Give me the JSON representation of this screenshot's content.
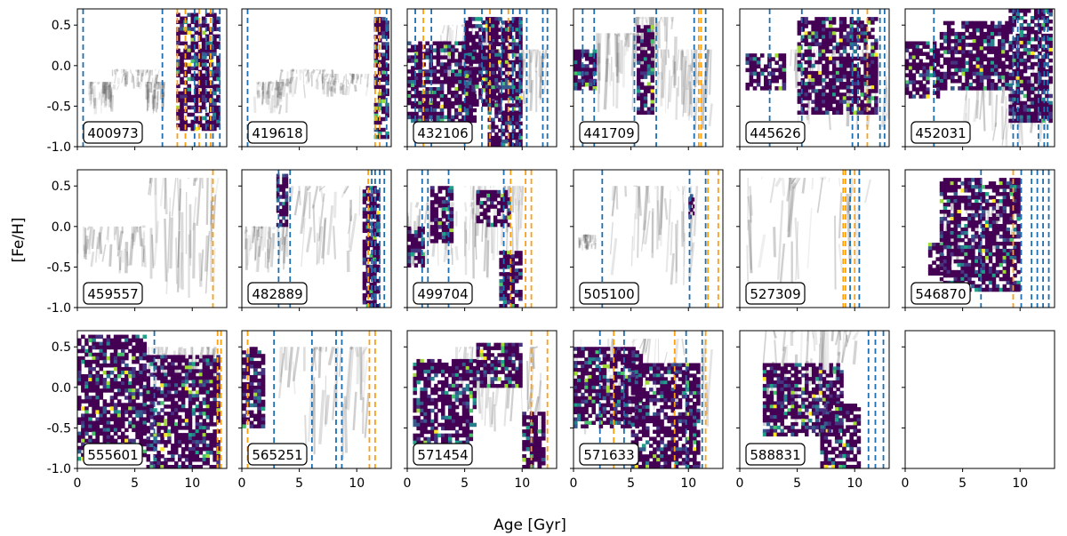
{
  "chart_data": {
    "type": "heatmap",
    "xlabel": "Age [Gyr]",
    "ylabel": "[Fe/H]",
    "xlim": [
      0,
      13
    ],
    "ylim": [
      -1.0,
      0.7
    ],
    "x_ticks": [
      "0",
      "5",
      "10"
    ],
    "y_ticks": [
      "0.5",
      "0.0",
      "-0.5",
      "-1.0"
    ],
    "x_tick_values": [
      0,
      5,
      10
    ],
    "y_tick_values": [
      0.5,
      0.0,
      -0.5,
      -1.0
    ],
    "colors": {
      "orange_lines": "#ff9f0f",
      "blue_lines": "#1f6fb0",
      "grey_density": "#555555"
    },
    "panels": [
      {
        "id": "400973",
        "grey": [
          [
            1,
            -0.6,
            3,
            -0.2
          ],
          [
            3,
            -0.3,
            7,
            -0.05
          ],
          [
            6,
            -0.6,
            7.5,
            -0.2
          ]
        ],
        "color": [
          [
            8.6,
            -0.8,
            12.4,
            0.65
          ]
        ],
        "blue": [
          0.5,
          7.4,
          10.2,
          11.2,
          11.8,
          12.4
        ],
        "orange": [
          8.7,
          9.4,
          10.6,
          11.6
        ]
      },
      {
        "id": "419618",
        "grey": [
          [
            1,
            -0.6,
            4,
            -0.2
          ],
          [
            3,
            -0.4,
            8,
            -0.05
          ],
          [
            7,
            -0.4,
            11,
            -0.1
          ]
        ],
        "color": [
          [
            11.5,
            -0.9,
            12.8,
            0.6
          ]
        ],
        "blue": [
          0.5,
          12.6
        ],
        "orange": [
          11.6,
          12.0
        ]
      },
      {
        "id": "432106",
        "grey": [
          [
            3,
            -0.3,
            9,
            0.5
          ],
          [
            7,
            -0.6,
            12,
            0.2
          ]
        ],
        "color": [
          [
            0,
            -0.7,
            6,
            0.3
          ],
          [
            5,
            -0.5,
            8,
            0.6
          ],
          [
            7,
            -1.0,
            10,
            0.6
          ]
        ],
        "blue": [
          0.7,
          2.1,
          5,
          6.5,
          8.2,
          9.2,
          9.8,
          10.4,
          11.8,
          12.2
        ],
        "orange": [
          1.4,
          7.2,
          8.8
        ]
      },
      {
        "id": "441709",
        "grey": [
          [
            2,
            -0.6,
            6,
            0.4
          ],
          [
            5,
            -0.3,
            9,
            0.6
          ],
          [
            7,
            -0.9,
            12,
            0.2
          ]
        ],
        "color": [
          [
            0,
            -0.3,
            2,
            0.2
          ],
          [
            5.5,
            -0.6,
            7,
            0.5
          ]
        ],
        "blue": [
          0.8,
          1.8,
          5.3,
          7.2,
          10.5,
          11.5
        ],
        "orange": [
          10.9,
          11.1
        ]
      },
      {
        "id": "445626",
        "grey": [
          [
            4,
            -0.8,
            13,
            0.2
          ]
        ],
        "color": [
          [
            0.5,
            -0.3,
            4,
            0.15
          ],
          [
            5,
            -0.6,
            12,
            0.6
          ]
        ],
        "blue": [
          2.6,
          5.4,
          9.8,
          10.3,
          12.2,
          12.6
        ],
        "orange": [
          11.1
        ]
      },
      {
        "id": "452031",
        "grey": [
          [
            5,
            -1.0,
            13,
            0.0
          ]
        ],
        "color": [
          [
            0,
            -0.4,
            3,
            0.3
          ],
          [
            3,
            -0.3,
            9,
            0.55
          ],
          [
            9,
            -0.7,
            12.8,
            0.7
          ]
        ],
        "blue": [
          2.5,
          9.4,
          9.8,
          11.6,
          12.1,
          12.4
        ],
        "orange": []
      },
      {
        "id": "459557",
        "grey": [
          [
            0,
            -0.6,
            6,
            0.0
          ],
          [
            6,
            -0.9,
            12,
            0.6
          ]
        ],
        "color": [],
        "blue": [],
        "orange": [
          11.8
        ]
      },
      {
        "id": "482889",
        "grey": [
          [
            0,
            -0.6,
            4,
            0.0
          ],
          [
            3,
            -0.6,
            12,
            0.5
          ]
        ],
        "color": [
          [
            3,
            0.0,
            4,
            0.65
          ],
          [
            10.5,
            -1.0,
            12,
            0.5
          ]
        ],
        "blue": [
          3.2,
          4.2,
          11.3,
          11.6,
          12.0,
          12.4
        ],
        "orange": [
          11.0
        ]
      },
      {
        "id": "499704",
        "grey": [
          [
            0,
            -0.5,
            6,
            0.3
          ],
          [
            5,
            -0.8,
            10,
            0.5
          ]
        ],
        "color": [
          [
            0,
            -0.5,
            1.5,
            0.0
          ],
          [
            2,
            -0.2,
            4,
            0.5
          ],
          [
            6,
            0.0,
            9,
            0.45
          ],
          [
            8,
            -1.0,
            10,
            -0.3
          ]
        ],
        "blue": [
          1.3,
          1.8,
          3.6,
          8.4
        ],
        "orange": [
          9.0,
          10.3,
          10.8
        ]
      },
      {
        "id": "505100",
        "grey": [
          [
            0.5,
            -0.3,
            2,
            -0.1
          ],
          [
            3,
            -0.8,
            11,
            0.5
          ]
        ],
        "color": [
          [
            10,
            0.1,
            10.5,
            0.4
          ]
        ],
        "blue": [
          2.5,
          10.1,
          11.5
        ],
        "orange": [
          11.7,
          12.6
        ]
      },
      {
        "id": "527309",
        "grey": [
          [
            0,
            -0.8,
            11,
            0.6
          ]
        ],
        "color": [],
        "blue": [
          9.6,
          10.4
        ],
        "orange": [
          9.0,
          9.2,
          10.0
        ]
      },
      {
        "id": "546870",
        "grey": [
          [
            3,
            -0.5,
            10,
            0.3
          ]
        ],
        "color": [
          [
            2,
            -0.6,
            4,
            -0.2
          ],
          [
            3,
            -0.8,
            10,
            0.6
          ]
        ],
        "blue": [
          6.6,
          10.1,
          11.0,
          11.5,
          12.0,
          12.5
        ],
        "orange": [
          9.4
        ]
      },
      {
        "id": "555601",
        "grey": [
          [
            6,
            -0.4,
            12,
            0.5
          ]
        ],
        "color": [
          [
            0,
            -0.9,
            6,
            0.65
          ],
          [
            6,
            -1.0,
            12.4,
            0.4
          ]
        ],
        "blue": [
          6.7
        ],
        "orange": [
          12.2,
          12.5
        ]
      },
      {
        "id": "565251",
        "grey": [
          [
            3,
            -0.9,
            11,
            0.5
          ]
        ],
        "color": [
          [
            0,
            -0.5,
            2,
            0.5
          ]
        ],
        "blue": [
          2.8,
          6.1,
          8.2,
          8.7
        ],
        "orange": [
          0.5,
          11.1,
          11.6
        ]
      },
      {
        "id": "571454",
        "grey": [
          [
            4,
            -0.6,
            12,
            0.5
          ]
        ],
        "color": [
          [
            0.5,
            -0.7,
            6,
            0.35
          ],
          [
            6,
            0.0,
            10,
            0.55
          ],
          [
            10,
            -1.0,
            12,
            -0.3
          ]
        ],
        "blue": [],
        "orange": [
          10.8,
          12.2
        ]
      },
      {
        "id": "571633",
        "grey": [
          [
            0,
            -0.6,
            12,
            0.6
          ]
        ],
        "color": [
          [
            0,
            -0.5,
            6,
            0.5
          ],
          [
            5,
            -1.0,
            11,
            0.3
          ]
        ],
        "blue": [
          2.3,
          4.4,
          9.8,
          11.2
        ],
        "orange": [
          3.5,
          8.8,
          11.5
        ]
      },
      {
        "id": "588831",
        "grey": [
          [
            2,
            -0.6,
            10,
            0.7
          ]
        ],
        "color": [
          [
            2,
            -0.6,
            9,
            0.3
          ],
          [
            7,
            -1.0,
            10.5,
            -0.2
          ]
        ],
        "blue": [
          11.2,
          11.8,
          12.5
        ],
        "orange": []
      },
      {
        "id": "",
        "grey": [],
        "color": [],
        "blue": [],
        "orange": []
      }
    ]
  }
}
